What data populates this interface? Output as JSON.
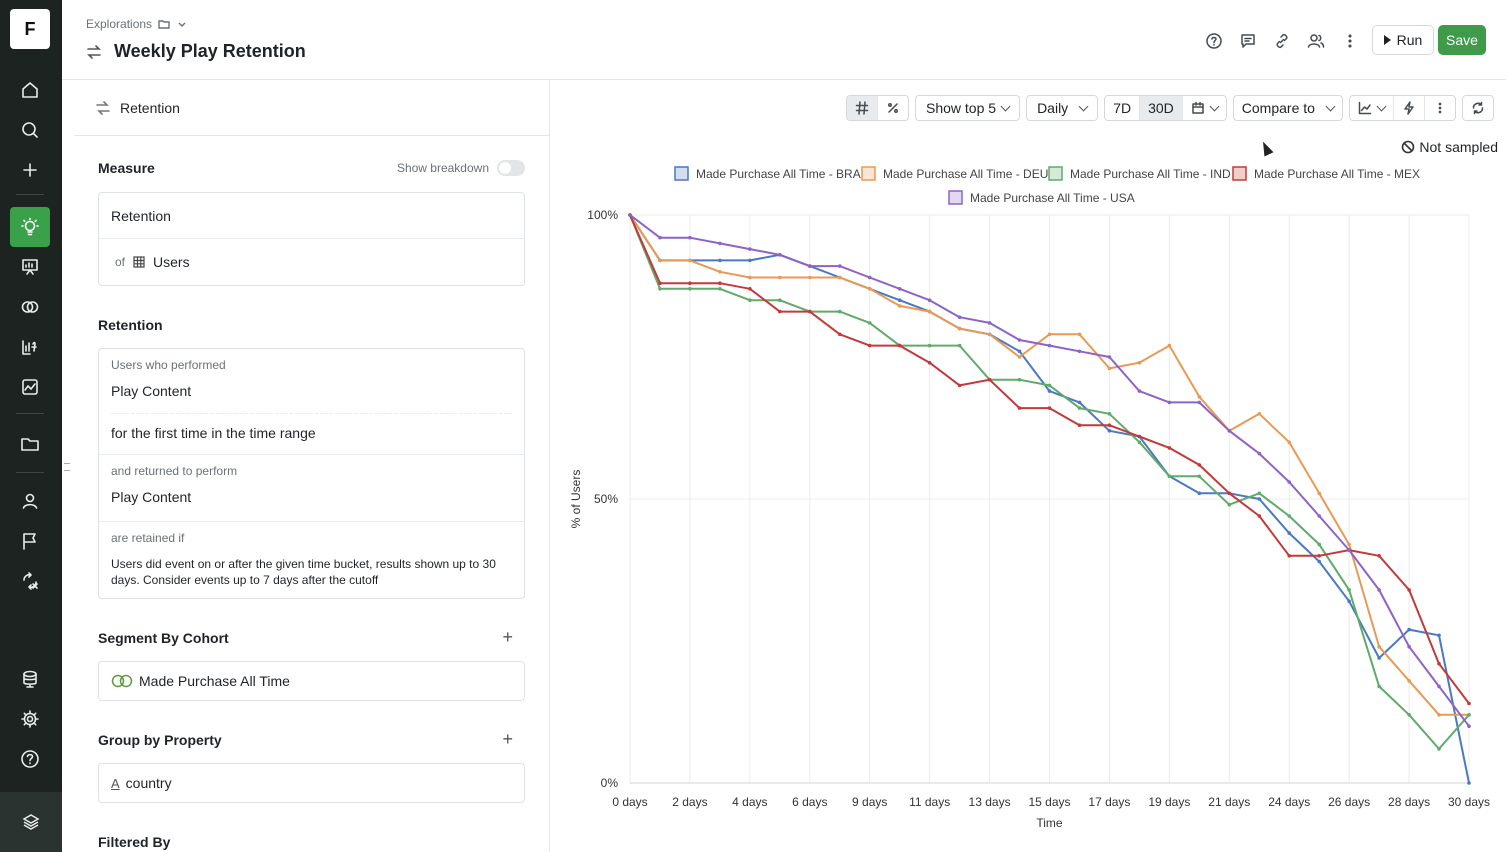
{
  "app": {
    "logo_letter": "F"
  },
  "sidebar": {
    "items": [
      {
        "icon": "home-icon"
      },
      {
        "icon": "search-icon"
      },
      {
        "icon": "plus-icon"
      },
      {
        "icon": "lightbulb-icon",
        "active": true
      },
      {
        "icon": "presentation-icon"
      },
      {
        "icon": "cohorts-icon"
      },
      {
        "icon": "formula-icon"
      },
      {
        "icon": "image-chart-icon"
      },
      {
        "icon": "folder-icon"
      },
      {
        "icon": "user-icon"
      },
      {
        "icon": "flag-icon"
      },
      {
        "icon": "experiments-icon"
      },
      {
        "icon": "database-icon"
      },
      {
        "icon": "settings-icon"
      },
      {
        "icon": "help-icon"
      }
    ],
    "accent_color": "#3aa14a"
  },
  "header": {
    "breadcrumb": "Explorations",
    "title": "Weekly Play Retention",
    "run_label": "Run",
    "save_label": "Save"
  },
  "left_panel": {
    "header": "Retention",
    "measure": {
      "title": "Measure",
      "show_breakdown": "Show breakdown",
      "metric": "Retention",
      "of_label": "of",
      "entity": "Users"
    },
    "retention": {
      "title": "Retention",
      "performed_label": "Users who performed",
      "performed_event": "Play Content",
      "first_time": "for the first time in the time range",
      "returned_label": "and returned to perform",
      "returned_event": "Play Content",
      "retained_label": "are retained if",
      "retained_desc": "Users did event on or after the given time bucket, results shown up to 30 days. Consider events up to 7 days after the cutoff"
    },
    "segment": {
      "title": "Segment By Cohort",
      "value": "Made Purchase All Time"
    },
    "group": {
      "title": "Group by Property",
      "value": "country"
    },
    "filtered": {
      "title": "Filtered By"
    }
  },
  "toolbar": {
    "show_top": "Show top 5",
    "interval": "Daily",
    "range_7d": "7D",
    "range_30d": "30D",
    "compare": "Compare to",
    "not_sampled": "Not sampled"
  },
  "chart_data": {
    "type": "line",
    "ylabel": "% of Users",
    "xlabel": "Time",
    "ylim": [
      0,
      100
    ],
    "yticks": [
      "100%",
      "50%",
      "0%"
    ],
    "x_tick_labels": [
      "0 days",
      "2 days",
      "4 days",
      "6 days",
      "9 days",
      "11 days",
      "13 days",
      "15 days",
      "17 days",
      "19 days",
      "21 days",
      "24 days",
      "26 days",
      "28 days",
      "30 days"
    ],
    "x": [
      0,
      1,
      2,
      3,
      4,
      5,
      6,
      7,
      8,
      9,
      10,
      11,
      12,
      13,
      14,
      15,
      16,
      17,
      18,
      19,
      20,
      21,
      22,
      23,
      24,
      25,
      26,
      27,
      28
    ],
    "legend_position": "top",
    "grid": true,
    "series": [
      {
        "name": "Made Purchase All Time - BRA",
        "color": "#4a78c2",
        "values": [
          100,
          92,
          92,
          92,
          92,
          93,
          91,
          89,
          87,
          85,
          83,
          80,
          79,
          76,
          69,
          67,
          62,
          61,
          54,
          51,
          51,
          50,
          44,
          39,
          32,
          22,
          27,
          26,
          0
        ]
      },
      {
        "name": "Made Purchase All Time - DEU",
        "color": "#e89a55",
        "values": [
          100,
          92,
          92,
          90,
          89,
          89,
          89,
          89,
          87,
          84,
          83,
          80,
          79,
          75,
          79,
          79,
          73,
          74,
          77,
          68,
          62,
          65,
          60,
          51,
          42,
          24,
          18,
          12,
          12
        ]
      },
      {
        "name": "Made Purchase All Time - IND",
        "color": "#5fab6a",
        "values": [
          100,
          87,
          87,
          87,
          85,
          85,
          83,
          83,
          81,
          77,
          77,
          77,
          71,
          71,
          70,
          66,
          65,
          60,
          54,
          54,
          49,
          51,
          47,
          42,
          34,
          17,
          12,
          6,
          12
        ]
      },
      {
        "name": "Made Purchase All Time - MEX",
        "color": "#c23a3a",
        "values": [
          100,
          88,
          88,
          88,
          87,
          83,
          83,
          79,
          77,
          77,
          74,
          70,
          71,
          66,
          66,
          63,
          63,
          61,
          59,
          56,
          51,
          47,
          40,
          40,
          41,
          40,
          34,
          21,
          14
        ]
      },
      {
        "name": "Made Purchase All Time - USA",
        "color": "#8e63c6",
        "values": [
          100,
          96,
          96,
          95,
          94,
          93,
          91,
          91,
          89,
          87,
          85,
          82,
          81,
          78,
          77,
          76,
          75,
          69,
          67,
          67,
          62,
          58,
          53,
          47,
          41,
          34,
          24,
          17,
          10
        ]
      }
    ]
  }
}
